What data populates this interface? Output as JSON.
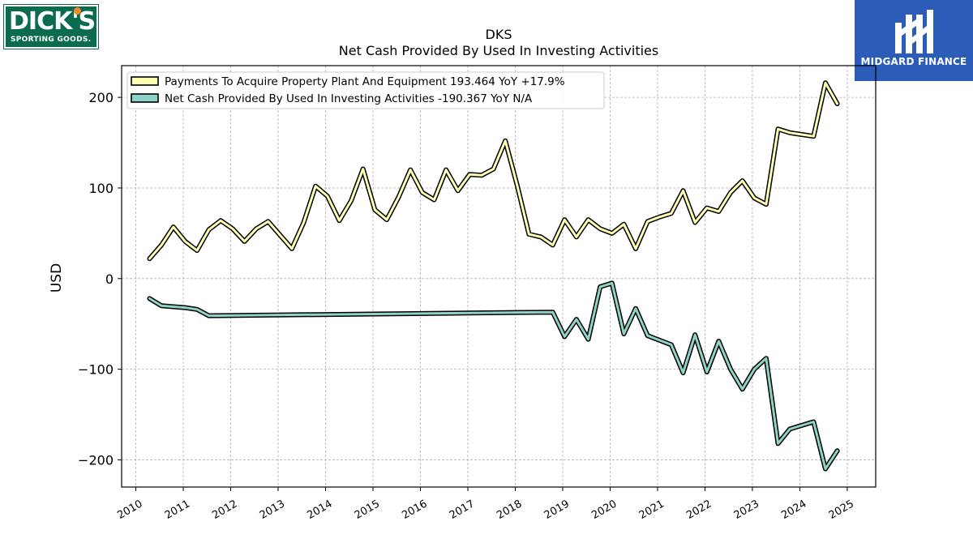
{
  "brand": {
    "left_logo_text": "DICK'S",
    "left_logo_subtext": "SPORTING GOODS.",
    "right_logo_text": "MIDGARD FINANCE"
  },
  "chart_data": {
    "type": "line",
    "title": "DKS",
    "subtitle": "Net Cash Provided By Used In Investing Activities",
    "xlabel": "",
    "ylabel": "USD",
    "xlim": [
      2009.7,
      2025.6
    ],
    "ylim": [
      -230,
      235
    ],
    "x_ticks": [
      "2010",
      "2011",
      "2012",
      "2013",
      "2014",
      "2015",
      "2016",
      "2017",
      "2018",
      "2019",
      "2020",
      "2021",
      "2022",
      "2023",
      "2024",
      "2025"
    ],
    "y_ticks": [
      {
        "value": 200,
        "label": "200"
      },
      {
        "value": 100,
        "label": "100"
      },
      {
        "value": 0,
        "label": "0"
      },
      {
        "value": -100,
        "label": "−100"
      },
      {
        "value": -200,
        "label": "−200"
      }
    ],
    "grid": true,
    "legend_position": "top-left",
    "series": [
      {
        "name": "Payments To Acquire Property Plant And Equipment  193.464 YoY +17.9%",
        "color": "#ffffb3",
        "points": [
          [
            2010.29,
            22
          ],
          [
            2010.54,
            37
          ],
          [
            2010.79,
            57
          ],
          [
            2011.04,
            41
          ],
          [
            2011.29,
            31
          ],
          [
            2011.54,
            54
          ],
          [
            2011.79,
            64
          ],
          [
            2012.04,
            55
          ],
          [
            2012.29,
            41
          ],
          [
            2012.54,
            55
          ],
          [
            2012.79,
            63
          ],
          [
            2013.04,
            48
          ],
          [
            2013.29,
            33
          ],
          [
            2013.54,
            62
          ],
          [
            2013.79,
            102
          ],
          [
            2014.04,
            91
          ],
          [
            2014.29,
            64
          ],
          [
            2014.54,
            86
          ],
          [
            2014.79,
            121
          ],
          [
            2015.04,
            76
          ],
          [
            2015.29,
            65
          ],
          [
            2015.54,
            90
          ],
          [
            2015.79,
            120
          ],
          [
            2016.04,
            95
          ],
          [
            2016.29,
            87
          ],
          [
            2016.54,
            120
          ],
          [
            2016.79,
            97
          ],
          [
            2017.04,
            115
          ],
          [
            2017.29,
            114
          ],
          [
            2017.54,
            121
          ],
          [
            2017.79,
            152
          ],
          [
            2018.04,
            103
          ],
          [
            2018.29,
            49
          ],
          [
            2018.54,
            46
          ],
          [
            2018.79,
            37
          ],
          [
            2019.04,
            65
          ],
          [
            2019.29,
            46
          ],
          [
            2019.54,
            65
          ],
          [
            2019.79,
            55
          ],
          [
            2020.04,
            50
          ],
          [
            2020.29,
            60
          ],
          [
            2020.54,
            33
          ],
          [
            2020.79,
            63
          ],
          [
            2021.04,
            68
          ],
          [
            2021.29,
            72
          ],
          [
            2021.54,
            97
          ],
          [
            2021.79,
            62
          ],
          [
            2022.04,
            78
          ],
          [
            2022.29,
            74
          ],
          [
            2022.54,
            95
          ],
          [
            2022.79,
            108
          ],
          [
            2023.04,
            89
          ],
          [
            2023.29,
            82
          ],
          [
            2023.54,
            165
          ],
          [
            2023.79,
            161
          ],
          [
            2024.04,
            159
          ],
          [
            2024.29,
            157
          ],
          [
            2024.54,
            216
          ],
          [
            2024.79,
            193
          ]
        ]
      },
      {
        "name": "Net Cash Provided By Used In Investing Activities  -190.367 YoY N/A",
        "color": "#8dd3c7",
        "points": [
          [
            2010.29,
            -22
          ],
          [
            2010.54,
            -30
          ],
          [
            2010.79,
            -31
          ],
          [
            2011.04,
            -32
          ],
          [
            2011.29,
            -34
          ],
          [
            2011.54,
            -41
          ],
          [
            2018.79,
            -37
          ],
          [
            2019.04,
            -64
          ],
          [
            2019.29,
            -45
          ],
          [
            2019.54,
            -67
          ],
          [
            2019.79,
            -9
          ],
          [
            2020.04,
            -5
          ],
          [
            2020.29,
            -61
          ],
          [
            2020.54,
            -33
          ],
          [
            2020.79,
            -63
          ],
          [
            2021.29,
            -73
          ],
          [
            2021.54,
            -104
          ],
          [
            2021.79,
            -62
          ],
          [
            2022.04,
            -103
          ],
          [
            2022.29,
            -69
          ],
          [
            2022.54,
            -100
          ],
          [
            2022.79,
            -122
          ],
          [
            2023.04,
            -100
          ],
          [
            2023.29,
            -88
          ],
          [
            2023.54,
            -182
          ],
          [
            2023.79,
            -166
          ],
          [
            2024.29,
            -158
          ],
          [
            2024.54,
            -210
          ],
          [
            2024.79,
            -190
          ]
        ]
      }
    ]
  }
}
